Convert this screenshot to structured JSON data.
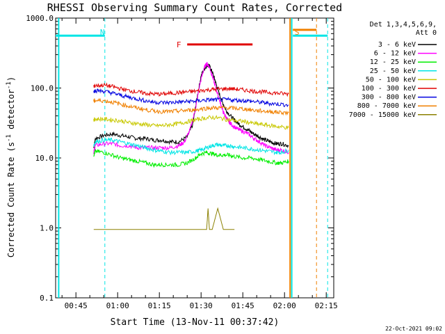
{
  "chart_data": {
    "type": "line",
    "title": "RHESSI Observing Summary Count Rates, Corrected",
    "xlabel": "Start Time (13-Nov-11 00:37:42)",
    "ylabel_main": "Corrected Count Rate (s",
    "ylabel_sup1": "-1",
    "ylabel_mid": " detector",
    "ylabel_sup2": "-1",
    "ylabel_end": ")",
    "y_scale": "log",
    "ylim": [
      0.1,
      1000.0
    ],
    "xlim_minutes": [
      37.7,
      137.7
    ],
    "x_ticks": [
      {
        "label": "00:45",
        "minutes": 45
      },
      {
        "label": "01:00",
        "minutes": 60
      },
      {
        "label": "01:15",
        "minutes": 75
      },
      {
        "label": "01:30",
        "minutes": 90
      },
      {
        "label": "01:45",
        "minutes": 105
      },
      {
        "label": "02:00",
        "minutes": 120
      },
      {
        "label": "02:15",
        "minutes": 135
      }
    ],
    "y_ticks": [
      {
        "label": "0.1",
        "value": 0.1
      },
      {
        "label": "1.0",
        "value": 1.0
      },
      {
        "label": "10.0",
        "value": 10.0
      },
      {
        "label": "100.0",
        "value": 100.0
      },
      {
        "label": "1000.0",
        "value": 1000.0
      }
    ],
    "legend_header": [
      "Det 1,3,4,5,6,9,",
      "Att 0"
    ],
    "legend_placement": "top-right",
    "annotations": [
      {
        "text": "N",
        "color": "#00e5e5",
        "minutes": 54.5,
        "kind": "night"
      },
      {
        "text": "F",
        "color": "#e00000",
        "minutes": 82,
        "kind": "flare"
      },
      {
        "text": "S",
        "color": "#f08000",
        "minutes": 124.5,
        "kind": "saa"
      }
    ],
    "bars": [
      {
        "name": "night-bar-left",
        "color": "#00e5e5",
        "start": 37.7,
        "end": 55.4,
        "level": 560
      },
      {
        "name": "night-bar-right",
        "color": "#00e5e5",
        "start": 123.0,
        "end": 135.5,
        "level": 560
      },
      {
        "name": "flare-bar",
        "color": "#e00000",
        "start": 85.0,
        "end": 108.5,
        "level": 420
      },
      {
        "name": "saa-bar",
        "color": "#f08000",
        "start": 123.0,
        "end": 131.5,
        "level": 680
      }
    ],
    "vlines": [
      {
        "name": "night-start-line",
        "minutes": 38.8,
        "color": "#00e5e5",
        "dashed": false
      },
      {
        "name": "night-end-line",
        "minutes": 55.4,
        "color": "#00e5e5",
        "dashed": true
      },
      {
        "name": "night2-start-line",
        "minutes": 122.6,
        "color": "#00e5e5",
        "dashed": false
      },
      {
        "name": "night2-end-line",
        "minutes": 135.5,
        "color": "#00e5e5",
        "dashed": true
      },
      {
        "name": "saa-start-line",
        "minutes": 122.0,
        "color": "#f08000",
        "dashed": false
      },
      {
        "name": "saa-end-line",
        "minutes": 131.5,
        "color": "#f08000",
        "dashed": true
      }
    ],
    "series": [
      {
        "name": "3 - 6 keV",
        "color": "#000000",
        "x": [
          51.4,
          52,
          55,
          58,
          61,
          64,
          67,
          70,
          73,
          76,
          79,
          82,
          85,
          87,
          88.5,
          90,
          91.5,
          92.5,
          93,
          94,
          95,
          96,
          97.5,
          99,
          101,
          103,
          105,
          107,
          109,
          111,
          113,
          115,
          117,
          119,
          121.5
        ],
        "y": [
          14,
          19,
          21,
          22,
          21,
          20,
          19,
          19,
          18,
          18,
          17,
          17,
          20,
          30,
          70,
          150,
          200,
          215,
          205,
          170,
          130,
          95,
          65,
          48,
          38,
          32,
          28,
          25,
          22,
          20,
          18,
          17,
          16,
          16,
          15
        ]
      },
      {
        "name": "6 - 12 keV",
        "color": "#ff00ff",
        "x": [
          51.4,
          52,
          55,
          58,
          61,
          64,
          67,
          70,
          73,
          76,
          79,
          82,
          84,
          86,
          88,
          89.5,
          91,
          92,
          93,
          94,
          95,
          96,
          97,
          98,
          99,
          100,
          101,
          103,
          105,
          107,
          109,
          111,
          113,
          115,
          117,
          119,
          121.5
        ],
        "y": [
          12,
          15,
          16,
          16,
          15,
          15,
          14,
          14,
          14,
          14,
          14,
          15,
          17,
          25,
          50,
          110,
          190,
          225,
          200,
          150,
          110,
          80,
          60,
          45,
          38,
          33,
          30,
          26,
          24,
          22,
          19,
          17,
          15,
          14,
          13,
          13,
          12
        ]
      },
      {
        "name": "12 - 25 keV",
        "color": "#00ee00",
        "x": [
          51.4,
          52,
          55,
          58,
          61,
          64,
          67,
          70,
          73,
          76,
          79,
          82,
          85,
          88,
          90,
          92,
          94,
          96,
          98,
          100,
          102,
          105,
          108,
          111,
          114,
          117,
          119,
          121.5
        ],
        "y": [
          11,
          12.5,
          12,
          11,
          10,
          9.5,
          9,
          8.5,
          8,
          8,
          8,
          8,
          8.5,
          10,
          11.5,
          12,
          11.5,
          11,
          11,
          11,
          10.5,
          10,
          10,
          9.5,
          9,
          8.5,
          8.5,
          9
        ]
      },
      {
        "name": "25 - 50 keV",
        "color": "#00e5e5",
        "x": [
          51.4,
          52,
          55,
          58,
          61,
          64,
          67,
          70,
          73,
          76,
          79,
          82,
          85,
          88,
          90,
          92,
          94,
          96,
          98,
          100,
          102,
          105,
          108,
          111,
          114,
          117,
          119,
          121.5
        ],
        "y": [
          15,
          17,
          18,
          18,
          17,
          16,
          15,
          14,
          13,
          12.5,
          12,
          12,
          12,
          12.5,
          13,
          14,
          15,
          15.5,
          15,
          15,
          14.5,
          14,
          13.5,
          13,
          12.5,
          12,
          12,
          13
        ]
      },
      {
        "name": "50 - 100 keV",
        "color": "#c8c800",
        "x": [
          51.4,
          52,
          55,
          58,
          61,
          64,
          67,
          70,
          73,
          76,
          79,
          82,
          85,
          88,
          91,
          94,
          97,
          100,
          103,
          106,
          109,
          112,
          115,
          118,
          121.5
        ],
        "y": [
          35,
          36,
          36,
          35,
          34,
          32,
          31,
          30,
          29,
          29,
          30,
          31,
          33,
          35,
          37,
          38,
          37,
          35,
          34,
          33,
          31,
          30,
          29,
          28,
          27
        ]
      },
      {
        "name": "100 - 300 keV",
        "color": "#e00000",
        "x": [
          51.4,
          52,
          55,
          58,
          61,
          64,
          67,
          70,
          73,
          76,
          79,
          82,
          85,
          88,
          91,
          94,
          97,
          100,
          103,
          106,
          109,
          112,
          115,
          118,
          121.5
        ],
        "y": [
          105,
          108,
          110,
          105,
          98,
          92,
          88,
          84,
          82,
          82,
          84,
          86,
          88,
          90,
          93,
          95,
          97,
          98,
          96,
          93,
          90,
          88,
          86,
          84,
          82
        ]
      },
      {
        "name": "300 - 800 keV",
        "color": "#0000e0",
        "x": [
          51.4,
          52,
          55,
          58,
          61,
          64,
          67,
          70,
          73,
          76,
          79,
          82,
          85,
          88,
          91,
          94,
          97,
          100,
          103,
          106,
          109,
          112,
          115,
          118,
          121.5
        ],
        "y": [
          90,
          92,
          90,
          85,
          79,
          74,
          70,
          66,
          63,
          62,
          62,
          63,
          64,
          65,
          67,
          68,
          68,
          68,
          67,
          66,
          64,
          62,
          60,
          59,
          57
        ]
      },
      {
        "name": "800 - 7000 keV",
        "color": "#f08000",
        "x": [
          51.4,
          52,
          55,
          58,
          61,
          64,
          67,
          70,
          73,
          76,
          79,
          82,
          85,
          88,
          91,
          94,
          97,
          100,
          103,
          106,
          109,
          112,
          115,
          118,
          121.5
        ],
        "y": [
          65,
          66,
          66,
          63,
          59,
          55,
          52,
          49,
          47,
          46,
          46,
          47,
          48,
          49,
          51,
          52,
          52,
          52,
          51,
          50,
          48,
          47,
          46,
          45,
          44
        ]
      },
      {
        "name": "7000 - 15000 keV",
        "color": "#8b8000",
        "x": [
          51.4,
          55,
          59,
          60,
          62,
          65,
          70,
          75,
          80,
          85,
          87,
          88,
          88.5,
          89,
          90,
          91,
          92,
          92.5,
          93,
          93.5,
          94,
          96,
          98,
          100,
          102
        ],
        "y": [
          0.95,
          0.95,
          0.95,
          0.95,
          0.95,
          0.95,
          0.95,
          0.95,
          0.95,
          0.95,
          0.95,
          0.95,
          0.95,
          0.95,
          0.95,
          0.95,
          0.95,
          1.9,
          0.95,
          0.95,
          0.95,
          1.9,
          0.95,
          0.95,
          0.95
        ]
      }
    ]
  },
  "footer_timestamp": "22-Oct-2021 09:02"
}
